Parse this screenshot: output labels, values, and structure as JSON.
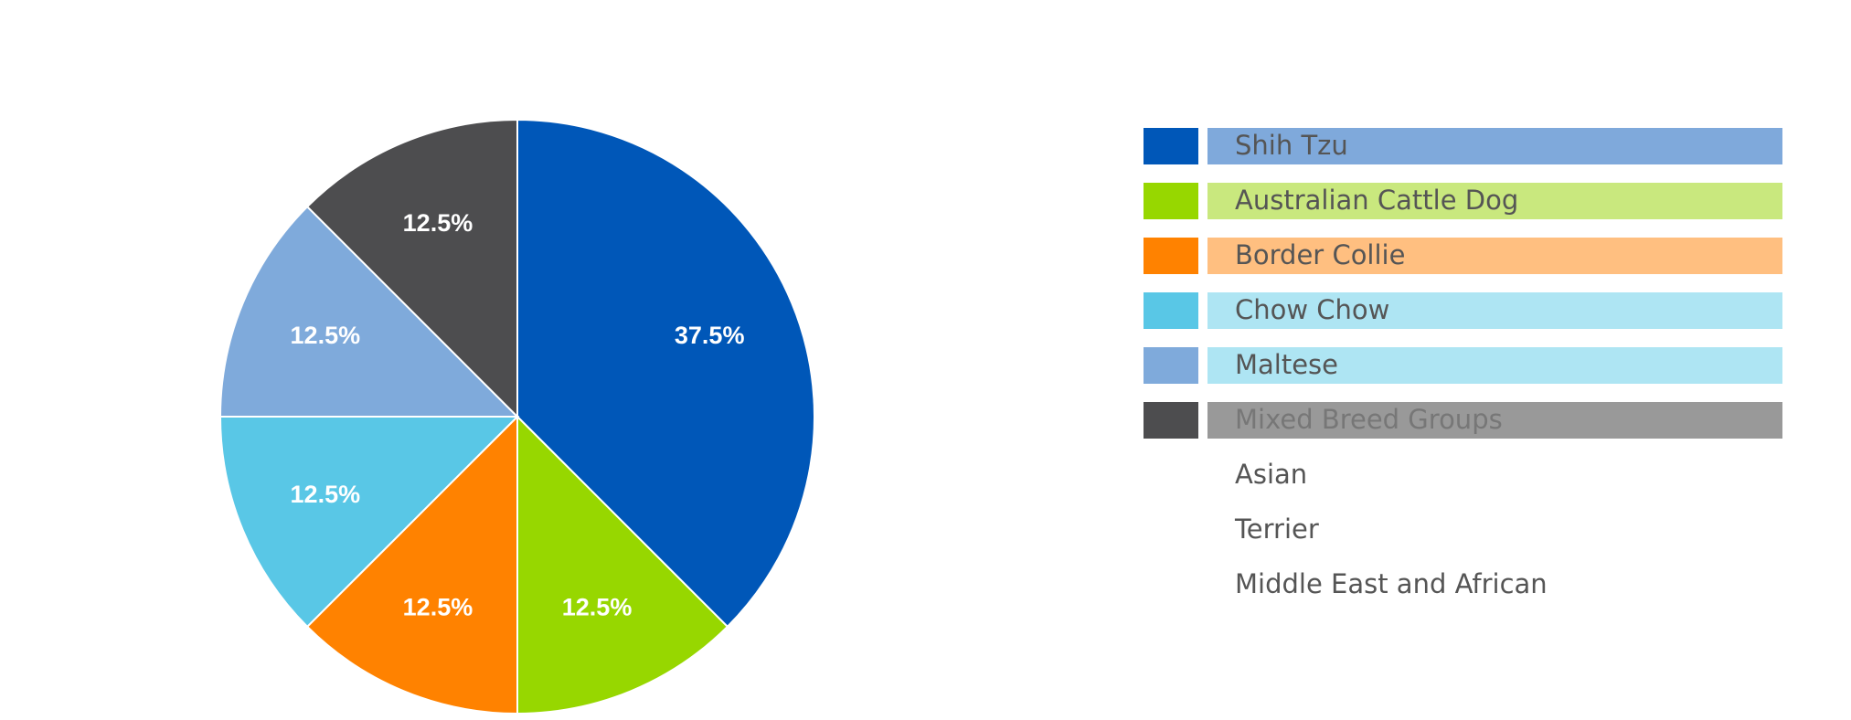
{
  "chart_data": {
    "type": "pie",
    "categories": [
      "Shih Tzu",
      "Australian Cattle Dog",
      "Border Collie",
      "Chow Chow",
      "Maltese",
      "Mixed Breed Groups"
    ],
    "values": [
      37.5,
      12.5,
      12.5,
      12.5,
      12.5,
      12.5
    ],
    "value_labels": [
      "37.5%",
      "12.5%",
      "12.5%",
      "12.5%",
      "12.5%",
      "12.5%"
    ],
    "colors": [
      "#0057b8",
      "#97d700",
      "#ff8200",
      "#59c7e6",
      "#7faadb",
      "#4d4d4f"
    ],
    "legend_colors": [
      "#7fa9db",
      "#c9e87e",
      "#ffbf80",
      "#aee5f3",
      "#aee5f3",
      "#999999"
    ],
    "legend_extra": [
      "Asian",
      "Terrier",
      "Middle East and African"
    ]
  }
}
